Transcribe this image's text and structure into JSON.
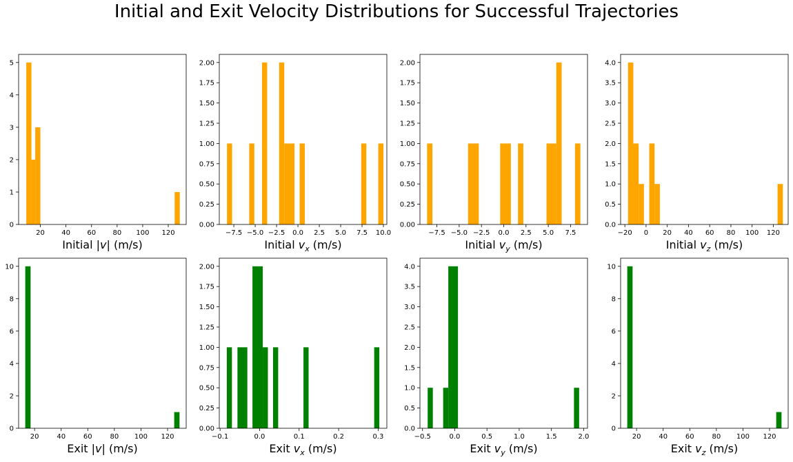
{
  "figure": {
    "title": "Initial and Exit Velocity Distributions for Successful Trajectories"
  },
  "colors": {
    "initial": "#ffa500",
    "exit": "#008000"
  },
  "chart_data": [
    {
      "type": "bar",
      "title": "",
      "xlabel": [
        "Initial |",
        "v",
        "| (m/s)"
      ],
      "xlim": [
        3,
        134
      ],
      "ylim": [
        0,
        5.25
      ],
      "xticks": [
        20,
        40,
        60,
        80,
        100,
        120
      ],
      "xticklabels": [
        "20",
        "40",
        "60",
        "80",
        "100",
        "120"
      ],
      "yticks": [
        0,
        1,
        2,
        3,
        4,
        5
      ],
      "yticklabels": [
        "0",
        "1",
        "2",
        "3",
        "4",
        "5"
      ],
      "color": "initial",
      "bars": [
        {
          "x0": 9,
          "x1": 13,
          "count": 5
        },
        {
          "x0": 13,
          "x1": 16,
          "count": 2
        },
        {
          "x0": 16,
          "x1": 20,
          "count": 3
        },
        {
          "x0": 125,
          "x1": 129,
          "count": 1
        }
      ]
    },
    {
      "type": "bar",
      "title": "",
      "xlabel": [
        "Initial ",
        "v",
        "x",
        " (m/s)"
      ],
      "xlim": [
        -9.2,
        10.4
      ],
      "ylim": [
        0,
        2.1
      ],
      "xticks": [
        -7.5,
        -5,
        -2.5,
        0,
        2.5,
        5,
        7.5,
        10
      ],
      "xticklabels": [
        "−7.5",
        "−5.0",
        "−2.5",
        "0.0",
        "2.5",
        "5.0",
        "7.5",
        "10.0"
      ],
      "yticks": [
        0,
        0.25,
        0.5,
        0.75,
        1,
        1.25,
        1.5,
        1.75,
        2
      ],
      "yticklabels": [
        "0.00",
        "0.25",
        "0.50",
        "0.75",
        "1.00",
        "1.25",
        "1.50",
        "1.75",
        "2.00"
      ],
      "color": "initial",
      "bars": [
        {
          "x0": -8.3,
          "x1": -7.7,
          "count": 1
        },
        {
          "x0": -5.7,
          "x1": -5.1,
          "count": 1
        },
        {
          "x0": -4.2,
          "x1": -3.6,
          "count": 2
        },
        {
          "x0": -2.2,
          "x1": -1.6,
          "count": 2
        },
        {
          "x0": -1.6,
          "x1": -0.4,
          "count": 1
        },
        {
          "x0": 0.2,
          "x1": 0.8,
          "count": 1
        },
        {
          "x0": 7.4,
          "x1": 8.0,
          "count": 1
        },
        {
          "x0": 9.4,
          "x1": 10.0,
          "count": 1
        }
      ]
    },
    {
      "type": "bar",
      "title": "",
      "xlabel": [
        "Initial ",
        "v",
        "y",
        " (m/s)"
      ],
      "xlim": [
        -9.4,
        9.4
      ],
      "ylim": [
        0,
        2.1
      ],
      "xticks": [
        -7.5,
        -5,
        -2.5,
        0,
        2.5,
        5,
        7.5
      ],
      "xticklabels": [
        "−7.5",
        "−5.0",
        "−2.5",
        "0.0",
        "2.5",
        "5.0",
        "7.5"
      ],
      "yticks": [
        0,
        0.25,
        0.5,
        0.75,
        1,
        1.25,
        1.5,
        1.75,
        2
      ],
      "yticklabels": [
        "0.00",
        "0.25",
        "0.50",
        "0.75",
        "1.00",
        "1.25",
        "1.50",
        "1.75",
        "2.00"
      ],
      "color": "initial",
      "bars": [
        {
          "x0": -8.6,
          "x1": -8.0,
          "count": 1
        },
        {
          "x0": -4.0,
          "x1": -2.8,
          "count": 1
        },
        {
          "x0": -0.4,
          "x1": 0.8,
          "count": 1
        },
        {
          "x0": 1.6,
          "x1": 2.2,
          "count": 1
        },
        {
          "x0": 4.8,
          "x1": 5.9,
          "count": 1
        },
        {
          "x0": 5.9,
          "x1": 6.5,
          "count": 2
        },
        {
          "x0": 8.0,
          "x1": 8.6,
          "count": 1
        }
      ]
    },
    {
      "type": "bar",
      "title": "",
      "xlabel": [
        "Initial ",
        "v",
        "z",
        " (m/s)"
      ],
      "xlim": [
        -24,
        134
      ],
      "ylim": [
        0,
        4.2
      ],
      "xticks": [
        -20,
        0,
        20,
        40,
        60,
        80,
        100,
        120
      ],
      "xticklabels": [
        "−20",
        "0",
        "20",
        "40",
        "60",
        "80",
        "100",
        "120"
      ],
      "yticks": [
        0,
        0.5,
        1,
        1.5,
        2,
        2.5,
        3,
        3.5,
        4
      ],
      "yticklabels": [
        "0.0",
        "0.5",
        "1.0",
        "1.5",
        "2.0",
        "2.5",
        "3.0",
        "3.5",
        "4.0"
      ],
      "color": "initial",
      "bars": [
        {
          "x0": -17,
          "x1": -12,
          "count": 4
        },
        {
          "x0": -12,
          "x1": -7,
          "count": 2
        },
        {
          "x0": -7,
          "x1": -2,
          "count": 1
        },
        {
          "x0": 3,
          "x1": 8,
          "count": 2
        },
        {
          "x0": 8,
          "x1": 13,
          "count": 1
        },
        {
          "x0": 124,
          "x1": 129,
          "count": 1
        }
      ]
    },
    {
      "type": "bar",
      "title": "",
      "xlabel": [
        "Exit |",
        "v",
        "| (m/s)"
      ],
      "xlim": [
        8,
        134
      ],
      "ylim": [
        0,
        10.5
      ],
      "xticks": [
        20,
        40,
        60,
        80,
        100,
        120
      ],
      "xticklabels": [
        "20",
        "40",
        "60",
        "80",
        "100",
        "120"
      ],
      "yticks": [
        0,
        2,
        4,
        6,
        8,
        10
      ],
      "yticklabels": [
        "0",
        "2",
        "4",
        "6",
        "8",
        "10"
      ],
      "color": "exit",
      "bars": [
        {
          "x0": 13,
          "x1": 17,
          "count": 10
        },
        {
          "x0": 125,
          "x1": 129,
          "count": 1
        }
      ]
    },
    {
      "type": "bar",
      "title": "",
      "xlabel": [
        "Exit ",
        "v",
        "x",
        " (m/s)"
      ],
      "xlim": [
        -0.102,
        0.322
      ],
      "ylim": [
        0,
        2.1
      ],
      "xticks": [
        -0.1,
        0,
        0.1,
        0.2,
        0.3
      ],
      "xticklabels": [
        "−0.1",
        "0.0",
        "0.1",
        "0.2",
        "0.3"
      ],
      "yticks": [
        0,
        0.25,
        0.5,
        0.75,
        1,
        1.25,
        1.5,
        1.75,
        2
      ],
      "yticklabels": [
        "0.00",
        "0.25",
        "0.50",
        "0.75",
        "1.00",
        "1.25",
        "1.50",
        "1.75",
        "2.00"
      ],
      "color": "exit",
      "bars": [
        {
          "x0": -0.083,
          "x1": -0.07,
          "count": 1
        },
        {
          "x0": -0.056,
          "x1": -0.031,
          "count": 1
        },
        {
          "x0": -0.018,
          "x1": 0.008,
          "count": 2
        },
        {
          "x0": 0.008,
          "x1": 0.021,
          "count": 1
        },
        {
          "x0": 0.034,
          "x1": 0.047,
          "count": 1
        },
        {
          "x0": 0.111,
          "x1": 0.124,
          "count": 1
        },
        {
          "x0": 0.29,
          "x1": 0.303,
          "count": 1
        }
      ]
    },
    {
      "type": "bar",
      "title": "",
      "xlabel": [
        "Exit ",
        "v",
        "y",
        " (m/s)"
      ],
      "xlim": [
        -0.54,
        2.06
      ],
      "ylim": [
        0,
        4.2
      ],
      "xticks": [
        -0.5,
        0,
        0.5,
        1,
        1.5,
        2
      ],
      "xticklabels": [
        "−0.5",
        "0.0",
        "0.5",
        "1.0",
        "1.5",
        "2.0"
      ],
      "yticks": [
        0,
        0.5,
        1,
        1.5,
        2,
        2.5,
        3,
        3.5,
        4
      ],
      "yticklabels": [
        "0.0",
        "0.5",
        "1.0",
        "1.5",
        "2.0",
        "2.5",
        "3.0",
        "3.5",
        "4.0"
      ],
      "color": "exit",
      "bars": [
        {
          "x0": -0.42,
          "x1": -0.34,
          "count": 1
        },
        {
          "x0": -0.18,
          "x1": -0.1,
          "count": 1
        },
        {
          "x0": -0.1,
          "x1": 0.05,
          "count": 4
        },
        {
          "x0": 1.85,
          "x1": 1.93,
          "count": 1
        }
      ]
    },
    {
      "type": "bar",
      "title": "",
      "xlabel": [
        "Exit ",
        "v",
        "z",
        " (m/s)"
      ],
      "xlim": [
        8,
        134
      ],
      "ylim": [
        0,
        10.5
      ],
      "xticks": [
        20,
        40,
        60,
        80,
        100,
        120
      ],
      "xticklabels": [
        "20",
        "40",
        "60",
        "80",
        "100",
        "120"
      ],
      "yticks": [
        0,
        2,
        4,
        6,
        8,
        10
      ],
      "yticklabels": [
        "0",
        "2",
        "4",
        "6",
        "8",
        "10"
      ],
      "color": "exit",
      "bars": [
        {
          "x0": 13,
          "x1": 17,
          "count": 10
        },
        {
          "x0": 125,
          "x1": 129,
          "count": 1
        }
      ]
    }
  ]
}
